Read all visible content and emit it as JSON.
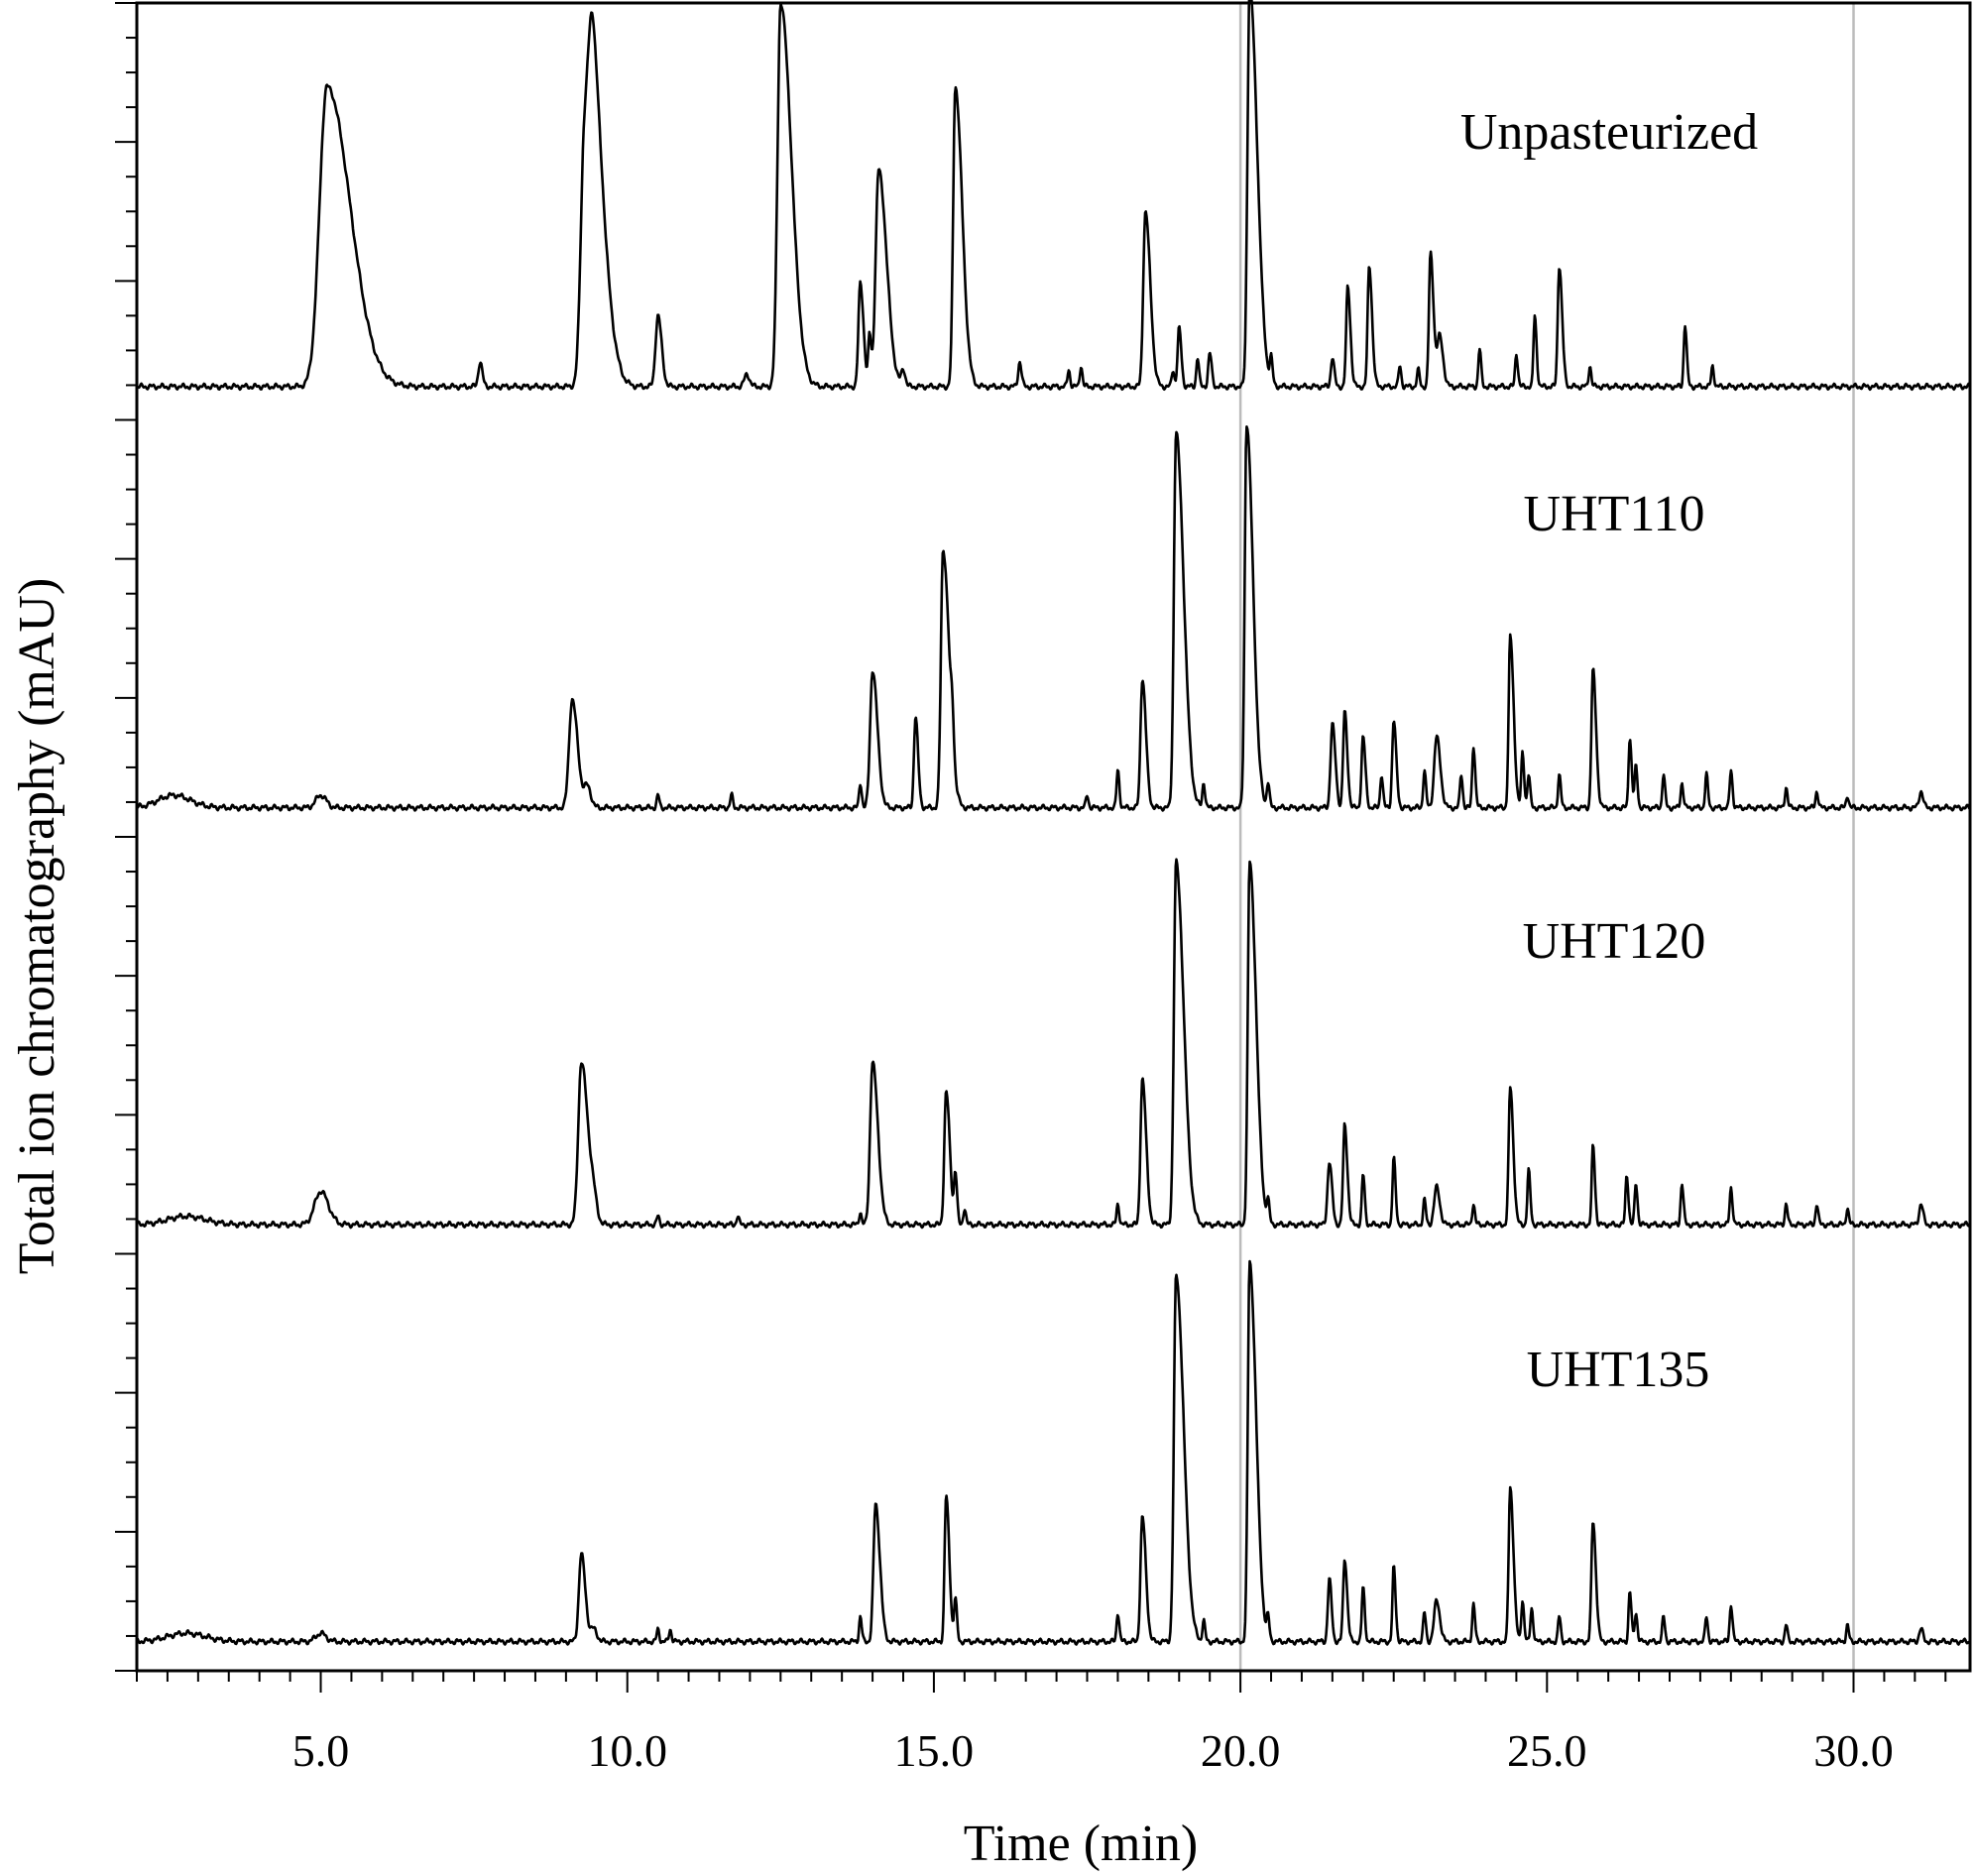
{
  "chart_data": {
    "type": "line",
    "xlabel": "Time (min)",
    "ylabel": "Total ion chromatography (mAU)",
    "xlim": [
      2.0,
      31.9
    ],
    "x_ticks": [
      "5.0",
      "10.0",
      "15.0",
      "20.0",
      "25.0",
      "30.0"
    ],
    "x_tick_values": [
      5,
      10,
      15,
      20,
      25,
      30
    ],
    "reference_lines_x": [
      20,
      30
    ],
    "y_tick_labels_shown": false,
    "grid": false,
    "line_color": "#000000",
    "reference_line_color": "#bbbbbb",
    "series": [
      {
        "name": "Unpasteurized",
        "baseline": 0.08,
        "peaks": [
          [
            5.1,
            0.72,
            0.12
          ],
          [
            7.6,
            0.06,
            0.03
          ],
          [
            9.3,
            0.57,
            0.06
          ],
          [
            9.45,
            0.5,
            0.08
          ],
          [
            10.5,
            0.17,
            0.04
          ],
          [
            11.95,
            0.03,
            0.04
          ],
          [
            12.5,
            0.92,
            0.05
          ],
          [
            13.8,
            0.25,
            0.03
          ],
          [
            13.95,
            0.12,
            0.02
          ],
          [
            14.1,
            0.52,
            0.05
          ],
          [
            14.5,
            0.04,
            0.03
          ],
          [
            15.35,
            0.72,
            0.035
          ],
          [
            16.4,
            0.06,
            0.025
          ],
          [
            17.2,
            0.04,
            0.02
          ],
          [
            17.4,
            0.05,
            0.02
          ],
          [
            18.45,
            0.42,
            0.035
          ],
          [
            18.9,
            0.04,
            0.02
          ],
          [
            19.0,
            0.14,
            0.025
          ],
          [
            19.3,
            0.07,
            0.02
          ],
          [
            19.5,
            0.08,
            0.025
          ],
          [
            20.15,
            0.96,
            0.035
          ],
          [
            20.5,
            0.06,
            0.02
          ],
          [
            21.5,
            0.07,
            0.025
          ],
          [
            21.75,
            0.24,
            0.025
          ],
          [
            22.1,
            0.29,
            0.025
          ],
          [
            22.6,
            0.05,
            0.02
          ],
          [
            22.9,
            0.04,
            0.02
          ],
          [
            23.1,
            0.32,
            0.025
          ],
          [
            23.25,
            0.12,
            0.04
          ],
          [
            23.9,
            0.09,
            0.02
          ],
          [
            24.5,
            0.08,
            0.02
          ],
          [
            24.8,
            0.17,
            0.02
          ],
          [
            25.2,
            0.29,
            0.025
          ],
          [
            25.7,
            0.05,
            0.02
          ],
          [
            27.25,
            0.15,
            0.02
          ],
          [
            27.7,
            0.05,
            0.02
          ]
        ]
      },
      {
        "name": "UHT110",
        "baseline": 0.07,
        "peaks": [
          [
            2.6,
            0.03,
            0.25
          ],
          [
            5.0,
            0.03,
            0.08
          ],
          [
            9.1,
            0.26,
            0.05
          ],
          [
            9.35,
            0.05,
            0.05
          ],
          [
            10.5,
            0.03,
            0.02
          ],
          [
            11.7,
            0.03,
            0.02
          ],
          [
            13.8,
            0.06,
            0.02
          ],
          [
            14.0,
            0.33,
            0.04
          ],
          [
            14.7,
            0.22,
            0.025
          ],
          [
            15.15,
            0.62,
            0.035
          ],
          [
            15.3,
            0.08,
            0.02
          ],
          [
            17.5,
            0.03,
            0.02
          ],
          [
            18.0,
            0.09,
            0.02
          ],
          [
            18.4,
            0.31,
            0.03
          ],
          [
            18.95,
            0.9,
            0.035
          ],
          [
            19.4,
            0.06,
            0.02
          ],
          [
            20.1,
            0.92,
            0.03
          ],
          [
            20.45,
            0.06,
            0.02
          ],
          [
            21.5,
            0.2,
            0.03
          ],
          [
            21.7,
            0.23,
            0.025
          ],
          [
            22.0,
            0.17,
            0.025
          ],
          [
            22.3,
            0.08,
            0.02
          ],
          [
            22.5,
            0.21,
            0.025
          ],
          [
            23.0,
            0.09,
            0.02
          ],
          [
            23.2,
            0.17,
            0.04
          ],
          [
            23.6,
            0.08,
            0.02
          ],
          [
            23.8,
            0.15,
            0.02
          ],
          [
            24.4,
            0.41,
            0.025
          ],
          [
            24.6,
            0.13,
            0.02
          ],
          [
            24.7,
            0.08,
            0.02
          ],
          [
            25.2,
            0.08,
            0.02
          ],
          [
            25.75,
            0.33,
            0.025
          ],
          [
            26.35,
            0.17,
            0.02
          ],
          [
            26.45,
            0.1,
            0.02
          ],
          [
            26.9,
            0.08,
            0.02
          ],
          [
            27.2,
            0.06,
            0.02
          ],
          [
            27.6,
            0.08,
            0.02
          ],
          [
            28.0,
            0.09,
            0.02
          ],
          [
            28.9,
            0.05,
            0.02
          ],
          [
            29.4,
            0.04,
            0.02
          ],
          [
            29.9,
            0.03,
            0.02
          ],
          [
            31.1,
            0.04,
            0.03
          ]
        ]
      },
      {
        "name": "UHT120",
        "baseline": 0.07,
        "peaks": [
          [
            2.8,
            0.02,
            0.3
          ],
          [
            5.0,
            0.08,
            0.1
          ],
          [
            9.25,
            0.39,
            0.05
          ],
          [
            9.45,
            0.04,
            0.05
          ],
          [
            10.5,
            0.02,
            0.02
          ],
          [
            11.8,
            0.02,
            0.02
          ],
          [
            13.8,
            0.03,
            0.02
          ],
          [
            14.0,
            0.39,
            0.04
          ],
          [
            15.2,
            0.32,
            0.03
          ],
          [
            15.35,
            0.12,
            0.02
          ],
          [
            15.5,
            0.04,
            0.02
          ],
          [
            18.0,
            0.05,
            0.02
          ],
          [
            18.4,
            0.35,
            0.03
          ],
          [
            18.95,
            0.87,
            0.035
          ],
          [
            20.15,
            0.87,
            0.03
          ],
          [
            20.45,
            0.05,
            0.02
          ],
          [
            21.45,
            0.15,
            0.03
          ],
          [
            21.7,
            0.24,
            0.025
          ],
          [
            22.0,
            0.12,
            0.02
          ],
          [
            22.5,
            0.16,
            0.02
          ],
          [
            23.0,
            0.06,
            0.02
          ],
          [
            23.2,
            0.09,
            0.04
          ],
          [
            23.8,
            0.05,
            0.02
          ],
          [
            24.4,
            0.33,
            0.025
          ],
          [
            24.7,
            0.13,
            0.02
          ],
          [
            25.75,
            0.19,
            0.02
          ],
          [
            26.3,
            0.12,
            0.02
          ],
          [
            26.45,
            0.1,
            0.02
          ],
          [
            27.2,
            0.1,
            0.02
          ],
          [
            28.0,
            0.09,
            0.02
          ],
          [
            28.9,
            0.05,
            0.02
          ],
          [
            29.4,
            0.05,
            0.02
          ],
          [
            29.9,
            0.04,
            0.02
          ],
          [
            31.1,
            0.05,
            0.03
          ]
        ]
      },
      {
        "name": "UHT135",
        "baseline": 0.07,
        "peaks": [
          [
            2.8,
            0.02,
            0.3
          ],
          [
            5.0,
            0.02,
            0.08
          ],
          [
            9.25,
            0.21,
            0.04
          ],
          [
            9.45,
            0.03,
            0.05
          ],
          [
            10.5,
            0.03,
            0.02
          ],
          [
            10.7,
            0.03,
            0.02
          ],
          [
            13.8,
            0.06,
            0.02
          ],
          [
            14.05,
            0.33,
            0.035
          ],
          [
            15.2,
            0.35,
            0.025
          ],
          [
            15.35,
            0.1,
            0.02
          ],
          [
            18.0,
            0.07,
            0.02
          ],
          [
            18.4,
            0.3,
            0.03
          ],
          [
            18.95,
            0.88,
            0.035
          ],
          [
            19.4,
            0.05,
            0.02
          ],
          [
            20.15,
            0.91,
            0.03
          ],
          [
            20.45,
            0.05,
            0.02
          ],
          [
            21.45,
            0.15,
            0.025
          ],
          [
            21.7,
            0.2,
            0.025
          ],
          [
            22.0,
            0.13,
            0.02
          ],
          [
            22.5,
            0.18,
            0.02
          ],
          [
            23.0,
            0.07,
            0.02
          ],
          [
            23.2,
            0.1,
            0.04
          ],
          [
            23.8,
            0.09,
            0.02
          ],
          [
            24.4,
            0.37,
            0.025
          ],
          [
            24.6,
            0.1,
            0.02
          ],
          [
            24.75,
            0.08,
            0.02
          ],
          [
            25.2,
            0.06,
            0.02
          ],
          [
            25.75,
            0.29,
            0.025
          ],
          [
            26.35,
            0.12,
            0.02
          ],
          [
            26.45,
            0.07,
            0.02
          ],
          [
            26.9,
            0.06,
            0.02
          ],
          [
            27.6,
            0.06,
            0.02
          ],
          [
            28.0,
            0.09,
            0.02
          ],
          [
            28.9,
            0.04,
            0.02
          ],
          [
            29.9,
            0.04,
            0.02
          ],
          [
            31.1,
            0.03,
            0.03
          ]
        ]
      }
    ]
  }
}
